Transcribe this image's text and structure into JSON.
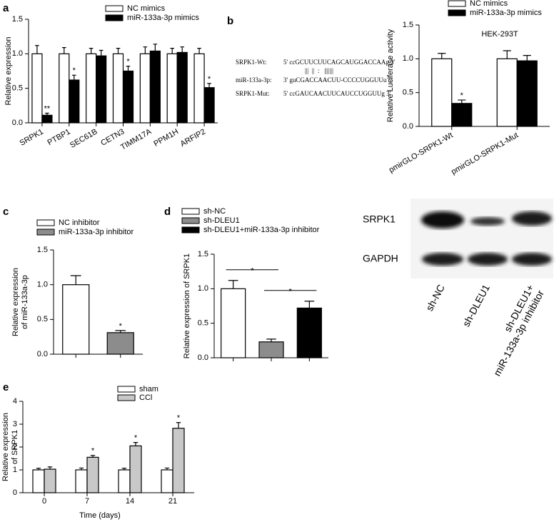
{
  "chart_data": [
    {
      "type": "bar",
      "panel": "a",
      "ylabel": [
        "Relative expression"
      ],
      "categories": [
        "SRPK1",
        "PTBP1",
        "SEC61B",
        "CETN3",
        "TIMM17A",
        "PPM1H",
        "ARFIP2"
      ],
      "series": [
        {
          "name": "NC mimics",
          "color": "#ffffff",
          "values": [
            1.0,
            1.0,
            1.0,
            1.0,
            1.0,
            1.0,
            1.0
          ],
          "errors": [
            0.12,
            0.09,
            0.08,
            0.08,
            0.1,
            0.08,
            0.08
          ]
        },
        {
          "name": "miR-133a-3p mimics",
          "color": "#000000",
          "values": [
            0.11,
            0.62,
            0.97,
            0.75,
            1.04,
            1.02,
            0.51
          ],
          "errors": [
            0.03,
            0.07,
            0.08,
            0.07,
            0.1,
            0.08,
            0.06
          ],
          "significance": [
            "**",
            "*",
            null,
            "*",
            null,
            null,
            "*"
          ]
        }
      ],
      "ylim": [
        0,
        1.5
      ],
      "yticks": [
        {
          "value": 0,
          "label": "0.0"
        },
        0.5,
        {
          "value": 1,
          "label": "1.0"
        },
        1.5
      ]
    },
    {
      "type": "bar",
      "panel": "b",
      "title": "HEK-293T",
      "ylabel": [
        "Relative Luciferase activity"
      ],
      "categories": [
        "pmirGLO-SRPK1-Wt",
        "pmirGLO-SRPK1-Mut"
      ],
      "series": [
        {
          "name": "NC mimics",
          "color": "#ffffff",
          "values": [
            1.0,
            1.0
          ],
          "errors": [
            0.08,
            0.12
          ]
        },
        {
          "name": "miR-133a-3p mimics",
          "color": "#000000",
          "values": [
            0.34,
            0.97
          ],
          "errors": [
            0.05,
            0.08
          ],
          "significance": [
            "*",
            null
          ]
        }
      ],
      "ylim": [
        0,
        1.5
      ],
      "yticks": [
        {
          "value": 0,
          "label": "0.0"
        },
        0.5,
        {
          "value": 1,
          "label": "1.0"
        },
        1.5
      ]
    },
    {
      "type": "bar",
      "panel": "c",
      "ylabel": [
        "Relative expression",
        "of miR-133a-3p"
      ],
      "categories": [
        null,
        null
      ],
      "series": [
        {
          "name": "NC inhibitor",
          "color": "#ffffff",
          "values": [
            1.0,
            null
          ],
          "errors": [
            0.13,
            null
          ]
        },
        {
          "name": "miR-133a-3p inhibitor",
          "color": "#8c8c8c",
          "values": [
            null,
            0.31
          ],
          "errors": [
            null,
            0.03
          ],
          "significance": [
            null,
            "*"
          ]
        }
      ],
      "ylim": [
        0,
        1.5
      ],
      "yticks": [
        {
          "value": 0,
          "label": "0.0"
        },
        0.5,
        {
          "value": 1,
          "label": "1.0"
        },
        1.5
      ]
    },
    {
      "type": "bar",
      "panel": "d",
      "ylabel": [
        "Relative expression of SRPK1"
      ],
      "categories": [
        null,
        null,
        null
      ],
      "series": [
        {
          "name": "sh-NC",
          "color": "#ffffff",
          "values": [
            1.0,
            null,
            null
          ],
          "errors": [
            0.12,
            null,
            null
          ]
        },
        {
          "name": "sh-DLEU1",
          "color": "#8c8c8c",
          "values": [
            null,
            0.23,
            null
          ],
          "errors": [
            null,
            0.04,
            null
          ]
        },
        {
          "name": "sh-DLEU1+miR-133a-3p inhibitor",
          "color": "#000000",
          "values": [
            null,
            null,
            0.72
          ],
          "errors": [
            null,
            null,
            0.1
          ]
        }
      ],
      "brackets": [
        {
          "categories": [
            0,
            1
          ],
          "label": "*"
        },
        {
          "categories": [
            1,
            2
          ],
          "label": "*"
        }
      ],
      "ylim": [
        0,
        1.5
      ],
      "yticks": [
        {
          "value": 0,
          "label": "0.0"
        },
        0.5,
        {
          "value": 1,
          "label": "1.0"
        },
        1.5
      ]
    },
    {
      "type": "bar",
      "panel": "e",
      "ylabel": [
        "Relative expression",
        "of SRPK1"
      ],
      "xlabel": "Time (days)",
      "categories": [
        "0",
        "7",
        "14",
        "21"
      ],
      "series": [
        {
          "name": "sham",
          "color": "#ffffff",
          "values": [
            1.0,
            1.0,
            1.0,
            1.0
          ],
          "errors": [
            0.07,
            0.08,
            0.07,
            0.08
          ]
        },
        {
          "name": "CCl",
          "color": "#c8c8c8",
          "values": [
            1.03,
            1.55,
            2.05,
            2.82
          ],
          "errors": [
            0.1,
            0.08,
            0.15,
            0.25
          ],
          "significance": [
            null,
            "*",
            "*",
            "*"
          ]
        }
      ],
      "ylim": [
        0,
        4
      ],
      "yticks": [
        0,
        1,
        2,
        3,
        4
      ]
    }
  ],
  "sequence": {
    "rows": [
      {
        "label": "SRPK1-Wt:",
        "text": "5' ccGCUUCUUCAGCAUGGACCAAg 3'"
      },
      {
        "text": "|||  ||  :   |||||||"
      },
      {
        "label": "miR-133a-3p:",
        "text": "3' guCGACCAACUU-CCCCUGGUUu 5'"
      },
      {
        "label": "SRPK1-Mut:",
        "text": "5' ccGAUCAACUUCAUCCUGGUUg 3'"
      }
    ]
  },
  "blot": {
    "rows": [
      "SRPK1",
      "GAPDH"
    ],
    "lanes": [
      [
        "sh-NC"
      ],
      [
        "sh-DLEU1"
      ],
      [
        "sh-DLEU1+",
        "miR-133a-3p inhibitor"
      ]
    ]
  }
}
